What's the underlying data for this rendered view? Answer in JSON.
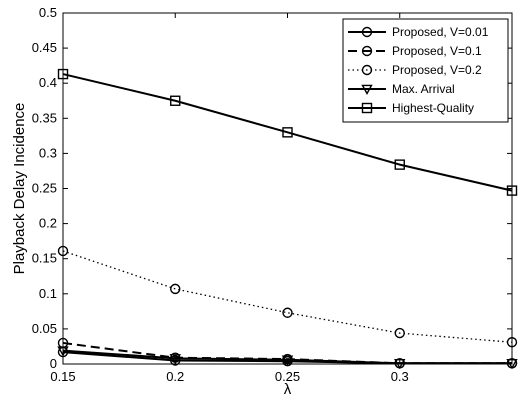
{
  "chart_data": {
    "type": "line",
    "title": "",
    "xlabel": "λ",
    "ylabel": "Playback Delay Incidence",
    "x": [
      0.15,
      0.2,
      0.25,
      0.3,
      0.35
    ],
    "xlim": [
      0.15,
      0.35
    ],
    "ylim": [
      0,
      0.5
    ],
    "xticks": [
      0.15,
      0.2,
      0.25,
      0.3
    ],
    "xtick_labels": [
      "0.15",
      "0.2",
      "0.25",
      "0.3"
    ],
    "yticks": [
      0,
      0.05,
      0.1,
      0.15,
      0.2,
      0.25,
      0.3,
      0.35,
      0.4,
      0.45,
      0.5
    ],
    "ytick_labels": [
      "0",
      "0.05",
      "0.1",
      "0.15",
      "0.2",
      "0.25",
      "0.3",
      "0.35",
      "0.4",
      "0.45",
      "0.5"
    ],
    "grid": false,
    "legend_position": "top-right",
    "series": [
      {
        "name": "Proposed, V=0.01",
        "values": [
          0.017,
          0.005,
          0.004,
          0.001,
          0.001
        ],
        "line_style": "solid",
        "marker": "circle",
        "color": "#000000"
      },
      {
        "name": "Proposed, V=0.1",
        "values": [
          0.03,
          0.009,
          0.007,
          0.001,
          0.001
        ],
        "line_style": "dashed",
        "marker": "circle",
        "color": "#000000"
      },
      {
        "name": "Proposed, V=0.2",
        "values": [
          0.161,
          0.107,
          0.073,
          0.044,
          0.031
        ],
        "line_style": "dotted",
        "marker": "circle",
        "color": "#000000"
      },
      {
        "name": "Max. Arrival",
        "values": [
          0.019,
          0.008,
          0.006,
          0.001,
          0.001
        ],
        "line_style": "solid",
        "marker": "triangle-down",
        "color": "#000000"
      },
      {
        "name": "Highest-Quality",
        "values": [
          0.413,
          0.375,
          0.33,
          0.284,
          0.247
        ],
        "line_style": "solid",
        "marker": "square",
        "color": "#000000"
      }
    ]
  }
}
